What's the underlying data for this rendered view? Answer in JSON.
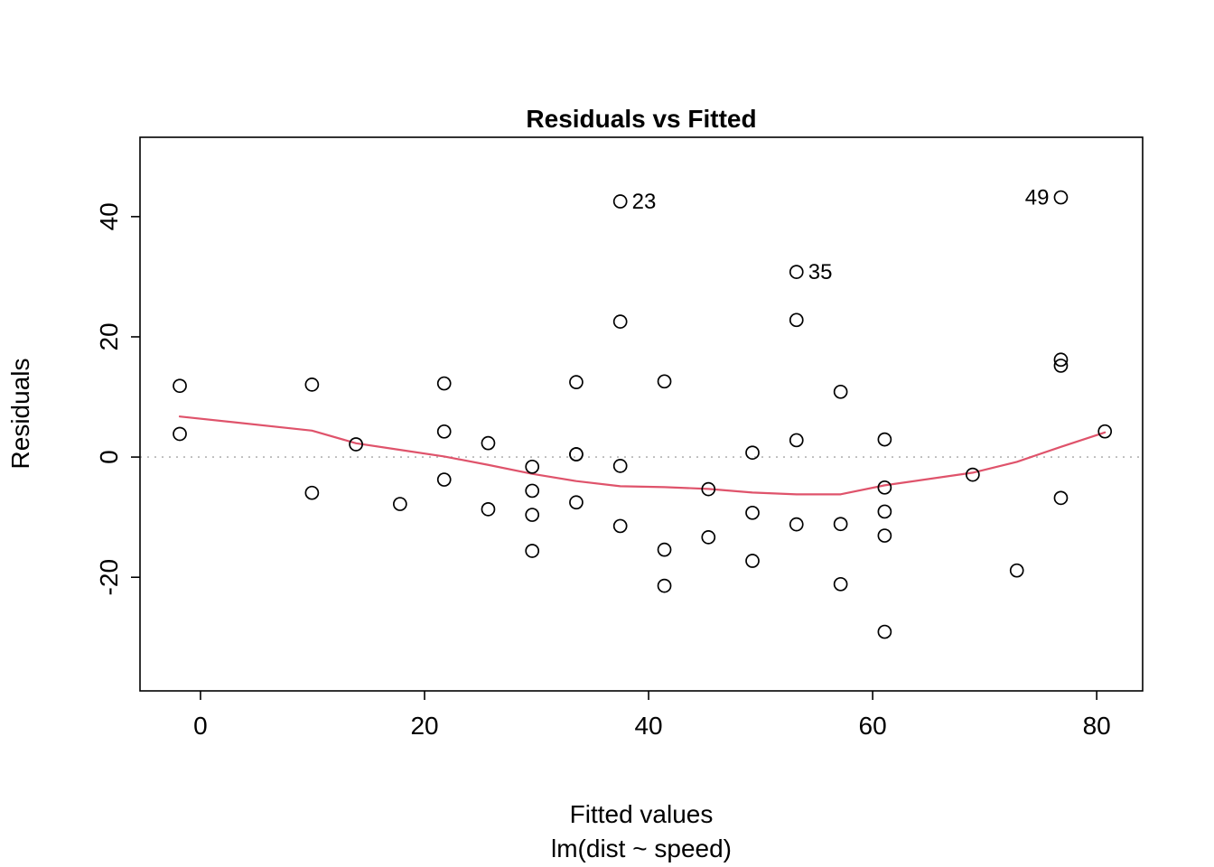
{
  "chart_data": {
    "type": "scatter",
    "title": "Residuals vs Fitted",
    "xlabel": "Fitted values",
    "xlabel2": "lm(dist ~ speed)",
    "ylabel": "Residuals",
    "xlim": [
      -5.4,
      84.1
    ],
    "ylim": [
      -38.9,
      53.2
    ],
    "x_ticks": [
      0,
      20,
      40,
      60,
      80
    ],
    "y_ticks": [
      -20,
      0,
      20,
      40
    ],
    "zero_line_y": 0,
    "grid": "off",
    "legend": "none",
    "colors": {
      "points": "#000000",
      "smoother": "#DF536B",
      "zero_line": "#b3b3b3",
      "axis": "#000000"
    },
    "points": [
      [
        -1.85,
        3.85
      ],
      [
        -1.85,
        11.85
      ],
      [
        9.95,
        -5.95
      ],
      [
        9.95,
        12.05
      ],
      [
        13.88,
        2.12
      ],
      [
        17.81,
        -7.81
      ],
      [
        21.75,
        -3.75
      ],
      [
        21.75,
        4.25
      ],
      [
        21.75,
        12.25
      ],
      [
        25.68,
        -8.68
      ],
      [
        25.68,
        2.32
      ],
      [
        29.61,
        -15.61
      ],
      [
        29.61,
        -9.61
      ],
      [
        29.61,
        -5.61
      ],
      [
        29.61,
        -1.61
      ],
      [
        33.54,
        -7.54
      ],
      [
        33.54,
        0.46
      ],
      [
        33.54,
        0.46
      ],
      [
        33.54,
        12.46
      ],
      [
        37.47,
        -11.47
      ],
      [
        37.47,
        -1.47
      ],
      [
        37.47,
        22.53
      ],
      [
        37.47,
        42.53
      ],
      [
        41.41,
        -21.41
      ],
      [
        41.41,
        -15.41
      ],
      [
        41.41,
        12.59
      ],
      [
        45.34,
        -13.34
      ],
      [
        45.34,
        -5.34
      ],
      [
        49.27,
        -17.27
      ],
      [
        49.27,
        -9.27
      ],
      [
        49.27,
        0.73
      ],
      [
        53.2,
        -11.2
      ],
      [
        53.2,
        2.8
      ],
      [
        53.2,
        22.8
      ],
      [
        53.2,
        30.8
      ],
      [
        57.14,
        -21.14
      ],
      [
        57.14,
        -11.14
      ],
      [
        57.14,
        10.86
      ],
      [
        61.07,
        -29.07
      ],
      [
        61.07,
        -13.07
      ],
      [
        61.07,
        -9.07
      ],
      [
        61.07,
        -5.07
      ],
      [
        61.07,
        2.93
      ],
      [
        68.93,
        -2.93
      ],
      [
        72.87,
        -18.87
      ],
      [
        76.8,
        -6.8
      ],
      [
        76.8,
        15.2
      ],
      [
        76.8,
        16.2
      ],
      [
        76.8,
        43.2
      ],
      [
        80.73,
        4.27
      ]
    ],
    "labeled_points": [
      {
        "label": "23",
        "x": 37.47,
        "y": 42.53,
        "side": "right"
      },
      {
        "label": "35",
        "x": 53.2,
        "y": 30.8,
        "side": "right"
      },
      {
        "label": "49",
        "x": 76.8,
        "y": 43.2,
        "side": "left"
      }
    ],
    "smoother": [
      [
        -1.85,
        6.75
      ],
      [
        9.95,
        4.4
      ],
      [
        13.88,
        2.3
      ],
      [
        17.81,
        1.2
      ],
      [
        21.75,
        0.1
      ],
      [
        25.68,
        -1.3
      ],
      [
        29.61,
        -2.8
      ],
      [
        33.54,
        -4.0
      ],
      [
        37.47,
        -4.85
      ],
      [
        41.41,
        -5.0
      ],
      [
        45.34,
        -5.3
      ],
      [
        49.27,
        -5.9
      ],
      [
        53.2,
        -6.2
      ],
      [
        57.14,
        -6.2
      ],
      [
        61.07,
        -4.7
      ],
      [
        68.93,
        -2.6
      ],
      [
        72.87,
        -0.8
      ],
      [
        76.8,
        1.7
      ],
      [
        80.73,
        4.1
      ]
    ]
  }
}
